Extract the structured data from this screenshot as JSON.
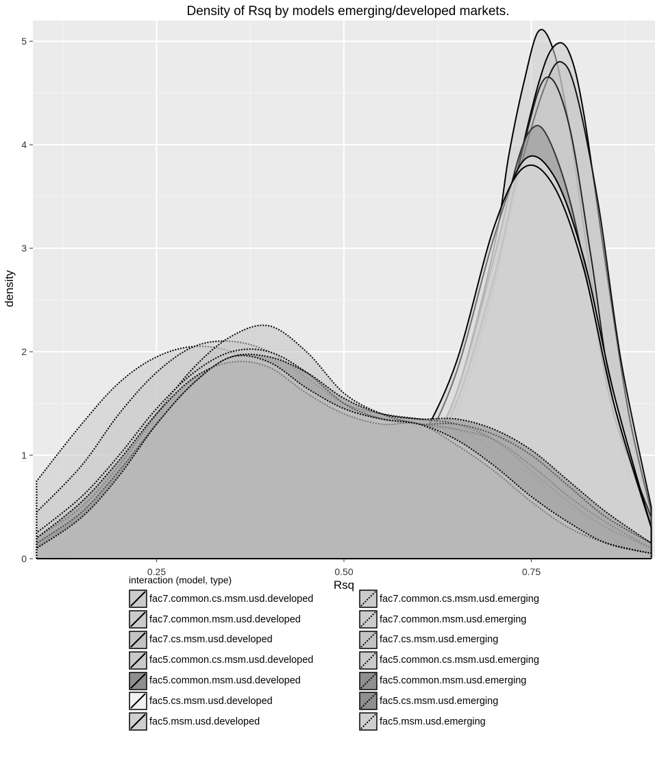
{
  "chart_data": {
    "type": "area",
    "title": "Density of Rsq by models emerging/developed markets.",
    "xlabel": "Rsq",
    "ylabel": "density",
    "xlim": [
      0.085,
      0.915
    ],
    "ylim": [
      0,
      5.2
    ],
    "x_ticks": [
      {
        "value": 0.25,
        "label": "0.25"
      },
      {
        "value": 0.5,
        "label": "0.50"
      },
      {
        "value": 0.75,
        "label": "0.75"
      }
    ],
    "y_ticks": [
      {
        "value": 0,
        "label": "0"
      },
      {
        "value": 1,
        "label": "1"
      },
      {
        "value": 2,
        "label": "2"
      },
      {
        "value": 3,
        "label": "3"
      },
      {
        "value": 4,
        "label": "4"
      },
      {
        "value": 5,
        "label": "5"
      }
    ],
    "grid": true,
    "legend_title": "interaction (model, type)",
    "legend_position": "bottom",
    "series": [
      {
        "name": "fac7.common.cs.msm.usd.developed",
        "type": "developed",
        "fill": "#cbcbcb",
        "line": "#000000",
        "x": [
          0.09,
          0.15,
          0.2,
          0.25,
          0.3,
          0.35,
          0.4,
          0.45,
          0.5,
          0.55,
          0.6,
          0.65,
          0.7,
          0.72,
          0.74,
          0.76,
          0.78,
          0.8,
          0.82,
          0.85,
          0.88,
          0.91
        ],
        "y": [
          0,
          0.01,
          0.02,
          0.05,
          0.08,
          0.12,
          0.15,
          0.2,
          0.3,
          0.5,
          0.9,
          1.6,
          3.0,
          3.9,
          4.6,
          5.1,
          4.9,
          4.2,
          3.2,
          1.8,
          0.8,
          0.35
        ]
      },
      {
        "name": "fac7.common.msm.usd.developed",
        "type": "developed",
        "fill": "#cbcbcb",
        "line": "#000000",
        "x": [
          0.09,
          0.2,
          0.3,
          0.4,
          0.45,
          0.5,
          0.55,
          0.6,
          0.65,
          0.7,
          0.73,
          0.76,
          0.78,
          0.8,
          0.82,
          0.85,
          0.88,
          0.91
        ],
        "y": [
          0,
          0.01,
          0.03,
          0.1,
          0.2,
          0.3,
          0.45,
          0.8,
          1.4,
          2.6,
          3.7,
          4.6,
          4.95,
          4.9,
          4.3,
          2.8,
          1.4,
          0.45
        ]
      },
      {
        "name": "fac7.cs.msm.usd.developed",
        "type": "developed",
        "fill": "#c3c3c3",
        "line": "#111111",
        "x": [
          0.09,
          0.2,
          0.3,
          0.4,
          0.45,
          0.5,
          0.55,
          0.6,
          0.65,
          0.7,
          0.74,
          0.77,
          0.79,
          0.81,
          0.84,
          0.87,
          0.91
        ],
        "y": [
          0,
          0.01,
          0.05,
          0.15,
          0.25,
          0.35,
          0.5,
          0.9,
          1.5,
          2.7,
          3.9,
          4.6,
          4.8,
          4.5,
          3.4,
          1.9,
          0.5
        ]
      },
      {
        "name": "fac5.common.cs.msm.usd.developed",
        "type": "developed",
        "fill": "#c9c9c9",
        "line": "#222222",
        "x": [
          0.09,
          0.2,
          0.3,
          0.35,
          0.4,
          0.45,
          0.5,
          0.55,
          0.6,
          0.65,
          0.7,
          0.74,
          0.77,
          0.8,
          0.83,
          0.86,
          0.91
        ],
        "y": [
          0,
          0.05,
          0.2,
          0.15,
          0.1,
          0.3,
          0.45,
          0.5,
          0.9,
          1.5,
          2.7,
          4.0,
          4.65,
          4.2,
          2.9,
          1.5,
          0.3
        ]
      },
      {
        "name": "fac5.common.msm.usd.developed",
        "type": "developed",
        "fill": "#8f8f8f",
        "line": "#333333",
        "x": [
          0.09,
          0.2,
          0.3,
          0.4,
          0.45,
          0.5,
          0.55,
          0.6,
          0.65,
          0.7,
          0.73,
          0.75,
          0.77,
          0.8,
          0.83,
          0.86,
          0.91
        ],
        "y": [
          0,
          0.1,
          0.3,
          0.3,
          0.4,
          0.45,
          0.5,
          0.9,
          1.6,
          2.9,
          3.8,
          4.15,
          4.1,
          3.5,
          2.5,
          1.4,
          0.4
        ]
      },
      {
        "name": "fac5.cs.msm.usd.developed",
        "type": "developed",
        "fill": "#f2f2f2",
        "line": "#000000",
        "x": [
          0.09,
          0.2,
          0.3,
          0.38,
          0.42,
          0.46,
          0.5,
          0.55,
          0.6,
          0.65,
          0.7,
          0.74,
          0.78,
          0.82,
          0.86,
          0.91
        ],
        "y": [
          0,
          0.1,
          0.35,
          0.2,
          0.7,
          0.4,
          0.45,
          0.5,
          1.0,
          1.8,
          3.1,
          3.85,
          3.7,
          2.9,
          1.6,
          0.3
        ]
      },
      {
        "name": "fac5.msm.usd.developed",
        "type": "developed",
        "fill": "#cfcfcf",
        "line": "#000000",
        "x": [
          0.09,
          0.2,
          0.3,
          0.38,
          0.42,
          0.46,
          0.5,
          0.55,
          0.6,
          0.65,
          0.7,
          0.74,
          0.78,
          0.82,
          0.86,
          0.91
        ],
        "y": [
          0,
          0.15,
          0.3,
          0.2,
          1.2,
          0.3,
          0.35,
          0.45,
          1.1,
          1.9,
          3.2,
          3.78,
          3.6,
          2.8,
          1.5,
          0.3
        ]
      },
      {
        "name": "fac7.common.cs.msm.usd.emerging",
        "type": "emerging",
        "fill": "#cbcbcb",
        "line": "#000000",
        "x": [
          0.09,
          0.15,
          0.2,
          0.25,
          0.3,
          0.35,
          0.4,
          0.45,
          0.5,
          0.55,
          0.6,
          0.65,
          0.7,
          0.75,
          0.8,
          0.85,
          0.91
        ],
        "y": [
          0.75,
          1.3,
          1.7,
          1.95,
          2.05,
          2.0,
          1.8,
          1.55,
          1.4,
          1.35,
          1.3,
          1.25,
          1.05,
          0.8,
          0.5,
          0.3,
          0.1
        ]
      },
      {
        "name": "fac7.common.msm.usd.emerging",
        "type": "emerging",
        "fill": "#cbcbcb",
        "line": "#000000",
        "x": [
          0.09,
          0.15,
          0.2,
          0.25,
          0.3,
          0.35,
          0.4,
          0.45,
          0.5,
          0.55,
          0.6,
          0.65,
          0.7,
          0.75,
          0.8,
          0.85,
          0.91
        ],
        "y": [
          0.45,
          0.9,
          1.4,
          1.8,
          2.05,
          2.1,
          2.0,
          1.75,
          1.5,
          1.4,
          1.35,
          1.3,
          1.15,
          0.85,
          0.55,
          0.3,
          0.1
        ]
      },
      {
        "name": "fac7.cs.msm.usd.emerging",
        "type": "emerging",
        "fill": "#c3c3c3",
        "line": "#000000",
        "x": [
          0.09,
          0.15,
          0.2,
          0.25,
          0.3,
          0.35,
          0.4,
          0.45,
          0.5,
          0.55,
          0.6,
          0.65,
          0.7,
          0.75,
          0.8,
          0.85,
          0.91
        ],
        "y": [
          0.2,
          0.5,
          0.9,
          1.4,
          1.85,
          2.15,
          2.25,
          2.0,
          1.6,
          1.4,
          1.3,
          1.25,
          1.15,
          0.9,
          0.6,
          0.35,
          0.1
        ]
      },
      {
        "name": "fac5.common.cs.msm.usd.emerging",
        "type": "emerging",
        "fill": "#c9c9c9",
        "line": "#000000",
        "x": [
          0.09,
          0.15,
          0.2,
          0.25,
          0.3,
          0.35,
          0.4,
          0.45,
          0.5,
          0.55,
          0.6,
          0.65,
          0.7,
          0.75,
          0.8,
          0.85,
          0.91
        ],
        "y": [
          0.25,
          0.6,
          1.0,
          1.45,
          1.8,
          2.0,
          2.0,
          1.8,
          1.5,
          1.35,
          1.3,
          1.3,
          1.2,
          1.0,
          0.7,
          0.4,
          0.15
        ]
      },
      {
        "name": "fac5.common.msm.usd.emerging",
        "type": "emerging",
        "fill": "#8f8f8f",
        "line": "#000000",
        "x": [
          0.09,
          0.15,
          0.2,
          0.25,
          0.3,
          0.35,
          0.4,
          0.45,
          0.5,
          0.55,
          0.6,
          0.65,
          0.7,
          0.75,
          0.8,
          0.85,
          0.91
        ],
        "y": [
          0.15,
          0.45,
          0.85,
          1.3,
          1.7,
          1.95,
          1.95,
          1.8,
          1.55,
          1.4,
          1.35,
          1.35,
          1.25,
          1.05,
          0.75,
          0.45,
          0.15
        ]
      },
      {
        "name": "fac5.cs.msm.usd.emerging",
        "type": "emerging",
        "fill": "#8f8f8f",
        "line": "#000000",
        "x": [
          0.09,
          0.15,
          0.2,
          0.25,
          0.3,
          0.35,
          0.4,
          0.45,
          0.5,
          0.55,
          0.6,
          0.65,
          0.7,
          0.75,
          0.8,
          0.85,
          0.91
        ],
        "y": [
          0.2,
          0.55,
          0.95,
          1.4,
          1.75,
          1.9,
          1.85,
          1.6,
          1.4,
          1.3,
          1.3,
          1.1,
          0.85,
          0.55,
          0.3,
          0.15,
          0.05
        ]
      },
      {
        "name": "fac5.msm.usd.emerging",
        "type": "emerging",
        "fill": "#cfcfcf",
        "line": "#000000",
        "x": [
          0.09,
          0.15,
          0.2,
          0.25,
          0.3,
          0.35,
          0.4,
          0.45,
          0.5,
          0.55,
          0.6,
          0.65,
          0.7,
          0.75,
          0.8,
          0.85,
          0.91
        ],
        "y": [
          0.1,
          0.4,
          0.8,
          1.3,
          1.7,
          1.95,
          1.9,
          1.65,
          1.45,
          1.35,
          1.3,
          1.15,
          0.9,
          0.6,
          0.35,
          0.15,
          0.05
        ]
      }
    ]
  },
  "colors": {
    "panel_background": "#ebebeb",
    "grid_major": "#ffffff",
    "grid_minor": "#f5f5f5",
    "baseline_fill": "#3a3a3a"
  }
}
